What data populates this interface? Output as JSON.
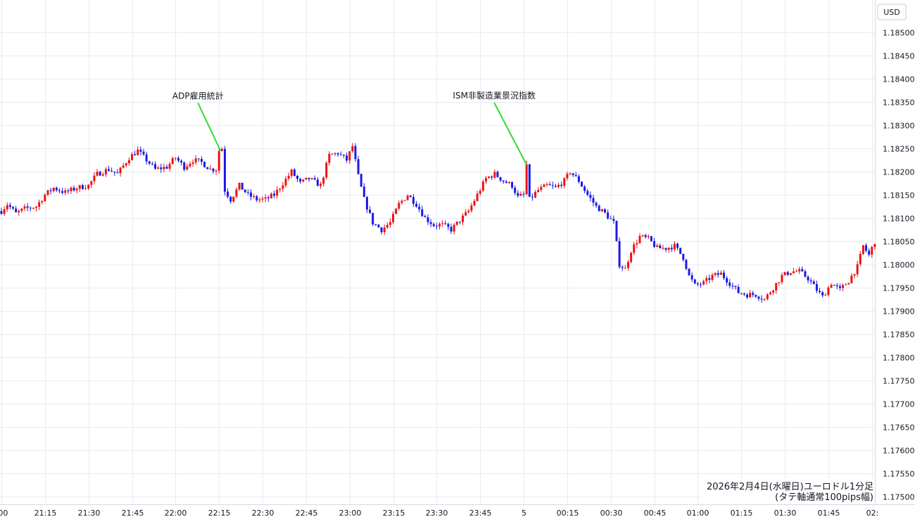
{
  "chart_data": {
    "type": "candlestick",
    "currency_label": "USD",
    "caption_line1": "2026年2月4日(水曜日)ユーロドル1分足",
    "caption_line2": "(タテ軸通常100pips幅)",
    "y_ticks": [
      "1.18500",
      "1.18450",
      "1.18400",
      "1.18350",
      "1.18300",
      "1.18250",
      "1.18200",
      "1.18150",
      "1.18100",
      "1.18050",
      "1.18000",
      "1.17950",
      "1.17900",
      "1.17850",
      "1.17800",
      "1.17750",
      "1.17700",
      "1.17650",
      "1.17600",
      "1.17550",
      "1.17500"
    ],
    "ylim": [
      1.175,
      1.1852
    ],
    "x_ticks": [
      ":00",
      "21:15",
      "21:30",
      "21:45",
      "22:00",
      "22:15",
      "22:30",
      "22:45",
      "23:00",
      "23:15",
      "23:30",
      "23:45",
      "5",
      "00:15",
      "00:30",
      "00:45",
      "01:00",
      "01:15",
      "01:30",
      "01:45",
      "02:"
    ],
    "x_tick_minutes": [
      0,
      15,
      30,
      45,
      60,
      75,
      90,
      105,
      120,
      135,
      150,
      165,
      180,
      195,
      210,
      225,
      240,
      255,
      270,
      285,
      300
    ],
    "grid": true,
    "up_color": "#ee1111",
    "down_color": "#1a1ae6",
    "annotation_color": "#33dd33",
    "annotations": [
      {
        "text": "ADP雇用統計",
        "minute": 75.5,
        "price": 1.18245
      },
      {
        "text": "ISM非製造業景況指数",
        "minute": 181,
        "price": 1.18215
      }
    ],
    "anchors": [
      [
        0,
        1.18115
      ],
      [
        2,
        1.1813
      ],
      [
        5,
        1.1811
      ],
      [
        8,
        1.1812
      ],
      [
        12,
        1.18125
      ],
      [
        15,
        1.1815
      ],
      [
        18,
        1.18165
      ],
      [
        22,
        1.18155
      ],
      [
        26,
        1.18165
      ],
      [
        30,
        1.1817
      ],
      [
        33,
        1.18195
      ],
      [
        37,
        1.18205
      ],
      [
        40,
        1.18195
      ],
      [
        44,
        1.1823
      ],
      [
        47,
        1.18245
      ],
      [
        50,
        1.18225
      ],
      [
        53,
        1.18205
      ],
      [
        57,
        1.1821
      ],
      [
        60,
        1.1823
      ],
      [
        63,
        1.1821
      ],
      [
        66,
        1.18225
      ],
      [
        69,
        1.1822
      ],
      [
        72,
        1.18205
      ],
      [
        74,
        1.18205
      ],
      [
        75,
        1.18245
      ],
      [
        76,
        1.1825
      ],
      [
        77,
        1.1816
      ],
      [
        79,
        1.1814
      ],
      [
        82,
        1.1817
      ],
      [
        85,
        1.1815
      ],
      [
        88,
        1.1814
      ],
      [
        91,
        1.1814
      ],
      [
        94,
        1.1815
      ],
      [
        97,
        1.18175
      ],
      [
        100,
        1.182
      ],
      [
        103,
        1.18175
      ],
      [
        106,
        1.18185
      ],
      [
        110,
        1.1817
      ],
      [
        113,
        1.18235
      ],
      [
        116,
        1.1824
      ],
      [
        119,
        1.18225
      ],
      [
        121,
        1.18255
      ],
      [
        123,
        1.1819
      ],
      [
        125,
        1.1814
      ],
      [
        128,
        1.1809
      ],
      [
        131,
        1.18075
      ],
      [
        134,
        1.1809
      ],
      [
        137,
        1.1813
      ],
      [
        140,
        1.1815
      ],
      [
        143,
        1.1813
      ],
      [
        146,
        1.181
      ],
      [
        149,
        1.18085
      ],
      [
        152,
        1.18085
      ],
      [
        155,
        1.18075
      ],
      [
        158,
        1.18095
      ],
      [
        161,
        1.18115
      ],
      [
        164,
        1.1815
      ],
      [
        167,
        1.18185
      ],
      [
        170,
        1.18195
      ],
      [
        173,
        1.1818
      ],
      [
        176,
        1.1817
      ],
      [
        178,
        1.18145
      ],
      [
        180,
        1.1815
      ],
      [
        181,
        1.18215
      ],
      [
        182,
        1.1814
      ],
      [
        185,
        1.1816
      ],
      [
        188,
        1.1817
      ],
      [
        191,
        1.18165
      ],
      [
        194,
        1.1818
      ],
      [
        196,
        1.182
      ],
      [
        199,
        1.1818
      ],
      [
        202,
        1.1815
      ],
      [
        205,
        1.18125
      ],
      [
        208,
        1.1811
      ],
      [
        211,
        1.1809
      ],
      [
        213,
        1.18
      ],
      [
        215,
        1.1799
      ],
      [
        217,
        1.1803
      ],
      [
        220,
        1.1806
      ],
      [
        223,
        1.18055
      ],
      [
        226,
        1.18035
      ],
      [
        229,
        1.18035
      ],
      [
        232,
        1.1804
      ],
      [
        235,
        1.18015
      ],
      [
        237,
        1.17975
      ],
      [
        239,
        1.17955
      ],
      [
        242,
        1.1796
      ],
      [
        245,
        1.17975
      ],
      [
        248,
        1.1798
      ],
      [
        251,
        1.1796
      ],
      [
        254,
        1.1794
      ],
      [
        257,
        1.17935
      ],
      [
        260,
        1.17935
      ],
      [
        263,
        1.17925
      ],
      [
        266,
        1.1795
      ],
      [
        269,
        1.17975
      ],
      [
        272,
        1.17985
      ],
      [
        275,
        1.17985
      ],
      [
        278,
        1.1797
      ],
      [
        281,
        1.17945
      ],
      [
        283,
        1.1793
      ],
      [
        286,
        1.1796
      ],
      [
        289,
        1.17945
      ],
      [
        292,
        1.17965
      ],
      [
        295,
        1.17995
      ],
      [
        297,
        1.1804
      ],
      [
        299,
        1.1802
      ],
      [
        301,
        1.1805
      ]
    ]
  }
}
